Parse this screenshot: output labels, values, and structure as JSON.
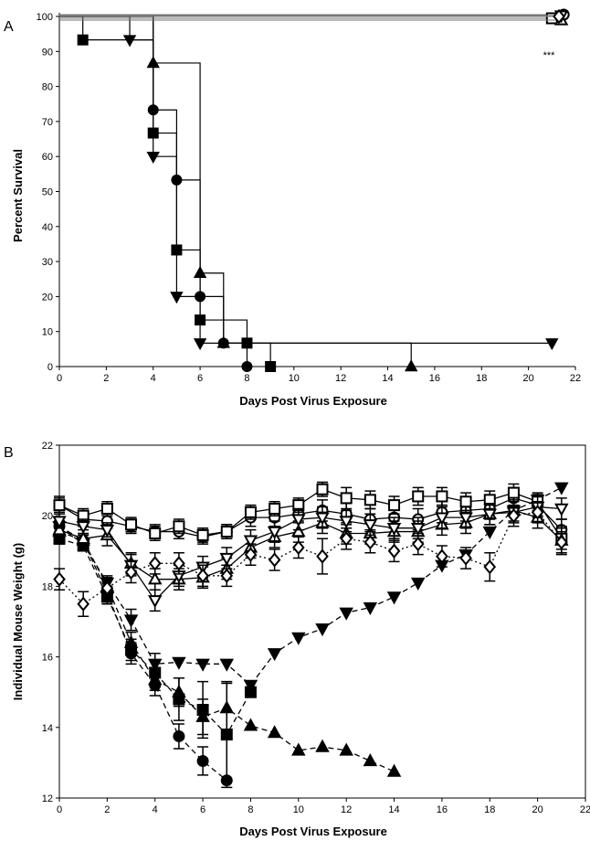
{
  "chart_data": [
    {
      "panel_label": "A",
      "type": "line",
      "step": true,
      "xlabel": "Days Post Virus Exposure",
      "ylabel": "Percent Survival",
      "xlim": [
        0,
        22
      ],
      "ylim": [
        0,
        100
      ],
      "xticks": [
        0,
        2,
        4,
        6,
        8,
        10,
        12,
        14,
        16,
        18,
        20,
        22
      ],
      "yticks": [
        0,
        10,
        20,
        30,
        40,
        50,
        60,
        70,
        80,
        90,
        100
      ],
      "annotation": "***",
      "grid": false,
      "series": [
        {
          "marker": "circle",
          "fill": "filled",
          "x": [
            0,
            4,
            5,
            6,
            7,
            8
          ],
          "y": [
            100,
            73.3,
            53.3,
            20,
            6.7,
            0
          ]
        },
        {
          "marker": "square",
          "fill": "filled",
          "x": [
            0,
            1,
            4,
            5,
            6,
            8,
            9
          ],
          "y": [
            100,
            93.3,
            66.7,
            33.3,
            13.3,
            6.7,
            0
          ]
        },
        {
          "marker": "triangle-up",
          "fill": "filled",
          "x": [
            0,
            4,
            6,
            7,
            15
          ],
          "y": [
            100,
            86.7,
            26.7,
            6.7,
            0
          ]
        },
        {
          "marker": "triangle-down",
          "fill": "filled",
          "x": [
            0,
            3,
            4,
            5,
            6,
            21
          ],
          "y": [
            100,
            93.3,
            60,
            20,
            6.7,
            6.7
          ]
        },
        {
          "marker": "circle",
          "fill": "open",
          "x": [
            0,
            21.5
          ],
          "y": [
            100,
            100
          ]
        },
        {
          "marker": "square",
          "fill": "open",
          "x": [
            0,
            21
          ],
          "y": [
            100,
            100
          ]
        },
        {
          "marker": "triangle-up",
          "fill": "open",
          "x": [
            0,
            21.4
          ],
          "y": [
            100,
            100
          ]
        },
        {
          "marker": "triangle-down",
          "fill": "open",
          "x": [
            0,
            21.4
          ],
          "y": [
            100,
            100
          ]
        },
        {
          "marker": "diamond",
          "fill": "open",
          "x": [
            0,
            21.3
          ],
          "y": [
            100,
            100
          ]
        }
      ]
    },
    {
      "panel_label": "B",
      "type": "line",
      "xlabel": "Days Post Virus Exposure",
      "ylabel": "Individual Mouse Weight (g)",
      "xlim": [
        0,
        22
      ],
      "ylim": [
        12,
        22
      ],
      "xticks": [
        0,
        2,
        4,
        6,
        8,
        10,
        12,
        14,
        16,
        18,
        20,
        22
      ],
      "yticks": [
        12,
        14,
        16,
        18,
        20,
        22
      ],
      "grid": false,
      "series": [
        {
          "marker": "circle",
          "fill": "filled",
          "style": "dashed",
          "x": [
            0,
            1,
            2,
            3,
            4,
            5,
            6,
            7
          ],
          "y": [
            19.7,
            19.3,
            17.8,
            16.1,
            15.2,
            13.75,
            13.05,
            12.5
          ],
          "err": [
            0.15,
            0.15,
            0.2,
            0.3,
            0.3,
            0.35,
            0.4,
            0
          ]
        },
        {
          "marker": "square",
          "fill": "filled",
          "style": "dashed",
          "x": [
            0,
            1,
            2,
            3,
            4,
            5,
            6,
            7,
            8
          ],
          "y": [
            19.35,
            19.15,
            17.7,
            16.2,
            15.55,
            14.8,
            14.5,
            13.8,
            15.0
          ],
          "err": [
            0.15,
            0.15,
            0.2,
            0.3,
            0.35,
            0.6,
            0.8,
            1.5,
            0
          ]
        },
        {
          "marker": "triangle-up",
          "fill": "filled",
          "style": "dashed",
          "x": [
            0,
            1,
            2,
            3,
            4,
            5,
            6,
            7,
            8,
            9,
            10,
            11,
            12,
            13,
            14
          ],
          "y": [
            19.55,
            19.3,
            18.0,
            16.4,
            15.35,
            15.0,
            14.3,
            14.55,
            14.05,
            13.85,
            13.35,
            13.45,
            13.35,
            13.05,
            12.75
          ],
          "err": [
            0.15,
            0.15,
            0.2,
            0.3,
            0.3,
            0.4,
            0.5,
            0.7,
            0,
            0,
            0,
            0,
            0,
            0,
            0
          ]
        },
        {
          "marker": "triangle-down",
          "fill": "filled",
          "style": "dashed",
          "x": [
            0,
            1,
            2,
            3,
            4,
            5,
            6,
            7,
            8,
            9,
            10,
            11,
            12,
            13,
            14,
            15,
            16,
            17,
            18,
            19,
            20,
            21
          ],
          "y": [
            19.7,
            19.2,
            18.1,
            17.05,
            15.8,
            15.85,
            15.8,
            15.8,
            15.2,
            16.1,
            16.55,
            16.8,
            17.25,
            17.4,
            17.7,
            18.1,
            18.6,
            18.9,
            19.55,
            20.15,
            20.45,
            20.8
          ],
          "err": [
            0.15,
            0.15,
            0.2,
            0.3,
            0.3,
            0,
            0,
            0,
            0,
            0,
            0,
            0,
            0,
            0,
            0,
            0,
            0,
            0,
            0,
            0,
            0,
            0
          ]
        },
        {
          "marker": "circle",
          "fill": "open",
          "style": "solid",
          "x": [
            0,
            1,
            2,
            3,
            4,
            5,
            6,
            7,
            8,
            9,
            10,
            11,
            12,
            13,
            14,
            15,
            16,
            17,
            18,
            19,
            20,
            21
          ],
          "y": [
            20.3,
            19.9,
            19.85,
            19.7,
            19.55,
            19.55,
            19.4,
            19.55,
            19.95,
            19.95,
            20.05,
            20.15,
            20.05,
            19.9,
            19.95,
            19.9,
            20.1,
            20.15,
            20.2,
            20.5,
            20.3,
            19.6
          ],
          "err": [
            0.25,
            0.2,
            0.2,
            0.2,
            0.2,
            0.2,
            0.2,
            0.2,
            0.25,
            0.25,
            0.25,
            0.3,
            0.3,
            0.3,
            0.3,
            0.3,
            0.3,
            0.3,
            0.3,
            0.3,
            0.3,
            0.3
          ]
        },
        {
          "marker": "square",
          "fill": "open",
          "style": "solid",
          "x": [
            0,
            1,
            2,
            3,
            4,
            5,
            6,
            7,
            8,
            9,
            10,
            11,
            12,
            13,
            14,
            15,
            16,
            17,
            18,
            19,
            20,
            21
          ],
          "y": [
            20.3,
            20.0,
            20.2,
            19.75,
            19.5,
            19.7,
            19.45,
            19.55,
            20.1,
            20.2,
            20.3,
            20.75,
            20.5,
            20.45,
            20.3,
            20.55,
            20.55,
            20.4,
            20.45,
            20.65,
            20.4,
            19.35
          ],
          "err": [
            0.2,
            0.2,
            0.2,
            0.2,
            0.2,
            0.2,
            0.2,
            0.2,
            0.2,
            0.2,
            0.2,
            0.2,
            0.3,
            0.25,
            0.25,
            0.25,
            0.25,
            0.25,
            0.25,
            0.25,
            0.25,
            0.3
          ]
        },
        {
          "marker": "triangle-up",
          "fill": "open",
          "style": "solid",
          "x": [
            0,
            1,
            2,
            3,
            4,
            5,
            6,
            7,
            8,
            9,
            10,
            11,
            12,
            13,
            14,
            15,
            16,
            17,
            18,
            19,
            20,
            21
          ],
          "y": [
            19.6,
            19.35,
            19.45,
            18.65,
            18.2,
            18.2,
            18.25,
            18.5,
            19.1,
            19.4,
            19.55,
            19.8,
            19.5,
            19.5,
            19.55,
            19.55,
            19.75,
            19.8,
            20.05,
            20.15,
            19.95,
            19.3
          ],
          "err": [
            0.25,
            0.25,
            0.3,
            0.3,
            0.3,
            0.3,
            0.3,
            0.3,
            0.3,
            0.3,
            0.3,
            0.3,
            0.3,
            0.3,
            0.3,
            0.3,
            0.3,
            0.3,
            0.3,
            0.3,
            0.3,
            0.4
          ]
        },
        {
          "marker": "triangle-down",
          "fill": "open",
          "style": "solid",
          "x": [
            0,
            1,
            2,
            3,
            4,
            5,
            6,
            7,
            8,
            9,
            10,
            11,
            12,
            13,
            14,
            15,
            16,
            17,
            18,
            19,
            20,
            21
          ],
          "y": [
            19.85,
            19.7,
            19.6,
            18.6,
            17.6,
            18.3,
            18.55,
            18.8,
            19.3,
            19.55,
            19.9,
            19.95,
            19.85,
            19.75,
            19.65,
            19.65,
            19.95,
            19.95,
            20.05,
            20.1,
            20.25,
            20.2
          ],
          "err": [
            0.2,
            0.2,
            0.2,
            0.3,
            0.3,
            0.3,
            0.3,
            0.3,
            0.3,
            0.3,
            0.3,
            0.3,
            0.3,
            0.3,
            0.3,
            0.3,
            0.3,
            0.3,
            0.3,
            0.3,
            0.3,
            0.3
          ]
        },
        {
          "marker": "diamond",
          "fill": "open",
          "style": "dotted",
          "x": [
            0,
            1,
            2,
            3,
            4,
            5,
            6,
            7,
            8,
            9,
            10,
            11,
            12,
            13,
            14,
            15,
            16,
            17,
            18,
            19,
            20,
            21
          ],
          "y": [
            18.2,
            17.5,
            17.95,
            18.4,
            18.65,
            18.65,
            18.3,
            18.3,
            18.9,
            18.75,
            19.1,
            18.85,
            19.35,
            19.25,
            19.0,
            19.2,
            18.85,
            18.8,
            18.55,
            20.0,
            20.1,
            19.25
          ],
          "err": [
            0.3,
            0.35,
            0.3,
            0.3,
            0.3,
            0.3,
            0.3,
            0.3,
            0.3,
            0.3,
            0.3,
            0.5,
            0.3,
            0.3,
            0.3,
            0.3,
            0.3,
            0.3,
            0.4,
            0.3,
            0.3,
            0.3
          ]
        }
      ]
    }
  ]
}
